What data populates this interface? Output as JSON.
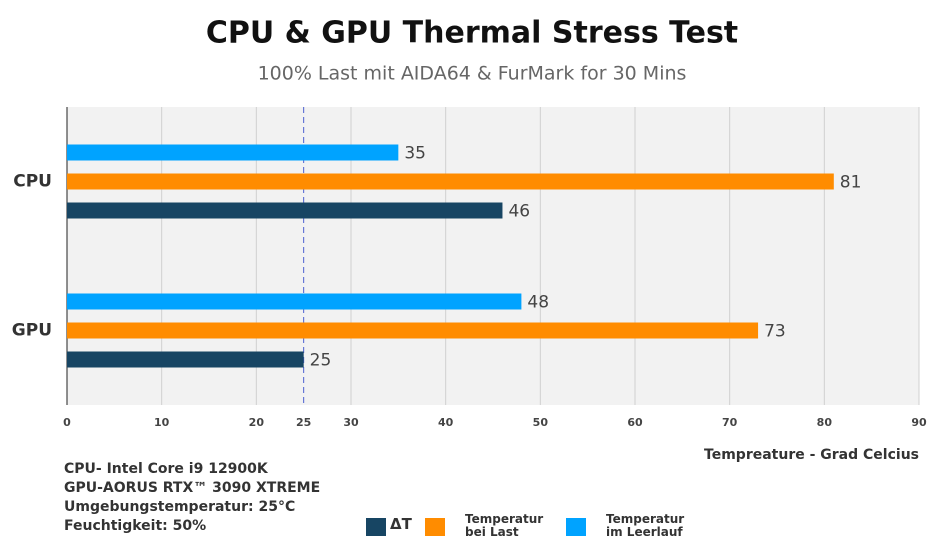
{
  "chart_data": {
    "type": "hbar",
    "title": "CPU & GPU Thermal Stress Test",
    "subtitle": "100% Last mit AIDA64 & FurMark for 30 Mins",
    "categories": [
      "CPU",
      "GPU"
    ],
    "series": [
      {
        "name": "Temperatur\nim Leerlauf",
        "color": "#00a3ff",
        "values": [
          35,
          48
        ]
      },
      {
        "name": "Temperatur\nbei Last",
        "color": "#ff8c00",
        "values": [
          81,
          73
        ]
      },
      {
        "name": "ΔT",
        "color": "#174563",
        "values": [
          46,
          25
        ]
      }
    ],
    "legend_order": [
      2,
      1,
      0
    ],
    "xlim": [
      0,
      90
    ],
    "xticks": [
      0,
      10,
      20,
      25,
      30,
      40,
      50,
      60,
      70,
      80,
      90
    ],
    "reference_line": 25,
    "xlabel": "Tempreature - Grad Celcius",
    "grid": true,
    "notes": [
      "CPU- Intel Core i9 12900K",
      "GPU-AORUS RTX™ 3090 XTREME",
      "Umgebungstemperatur: 25°C",
      "Feuchtigkeit: 50%"
    ]
  }
}
